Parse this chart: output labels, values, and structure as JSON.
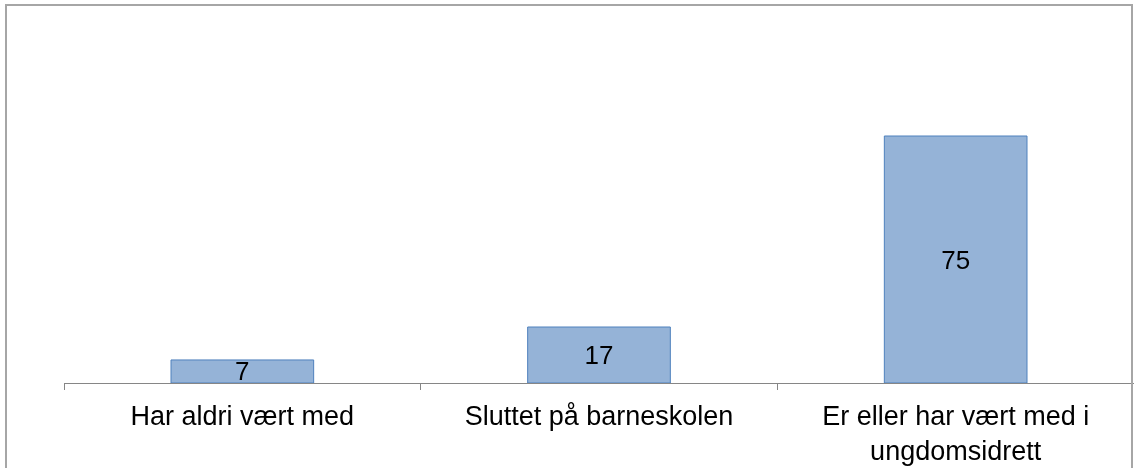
{
  "chart_data": {
    "type": "bar",
    "categories": [
      "Har aldri vært med",
      "Sluttet på barneskolen",
      "Er eller har vært med i ungdomsidrett"
    ],
    "values": [
      7,
      17,
      75
    ],
    "color": "#95b3d7",
    "data_labels": true,
    "tick_labels": "x"
  }
}
